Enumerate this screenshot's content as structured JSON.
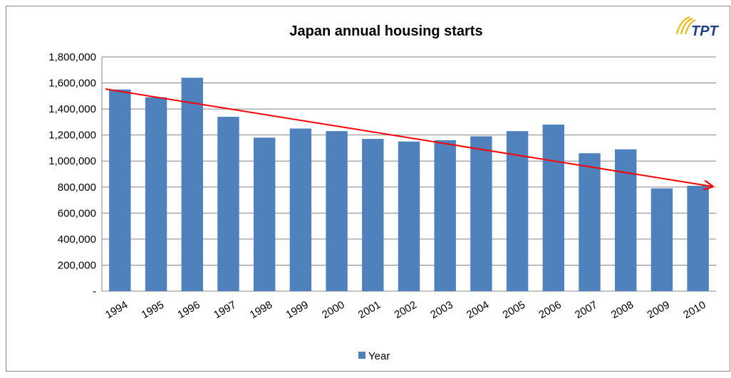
{
  "chart_data": {
    "type": "bar",
    "title": "Japan annual housing starts",
    "logo": "TPT",
    "categories": [
      "1994",
      "1995",
      "1996",
      "1997",
      "1998",
      "1999",
      "2000",
      "2001",
      "2002",
      "2003",
      "2004",
      "2005",
      "2006",
      "2007",
      "2008",
      "2009",
      "2010"
    ],
    "series": [
      {
        "name": "Year",
        "color": "#4f81bd",
        "values": [
          1550000,
          1490000,
          1640000,
          1340000,
          1180000,
          1250000,
          1230000,
          1170000,
          1150000,
          1160000,
          1190000,
          1230000,
          1280000,
          1060000,
          1090000,
          790000,
          810000
        ]
      }
    ],
    "ylim": [
      0,
      1800000
    ],
    "yticks": [
      {
        "value": 0,
        "label": "-"
      },
      {
        "value": 200000,
        "label": "200,000"
      },
      {
        "value": 400000,
        "label": "400,000"
      },
      {
        "value": 600000,
        "label": "600,000"
      },
      {
        "value": 800000,
        "label": "800,000"
      },
      {
        "value": 1000000,
        "label": "1,000,000"
      },
      {
        "value": 1200000,
        "label": "1,200,000"
      },
      {
        "value": 1400000,
        "label": "1,400,000"
      },
      {
        "value": 1600000,
        "label": "1,600,000"
      },
      {
        "value": 1800000,
        "label": "1,800,000"
      }
    ],
    "grid": true,
    "legend": "bottom"
  }
}
